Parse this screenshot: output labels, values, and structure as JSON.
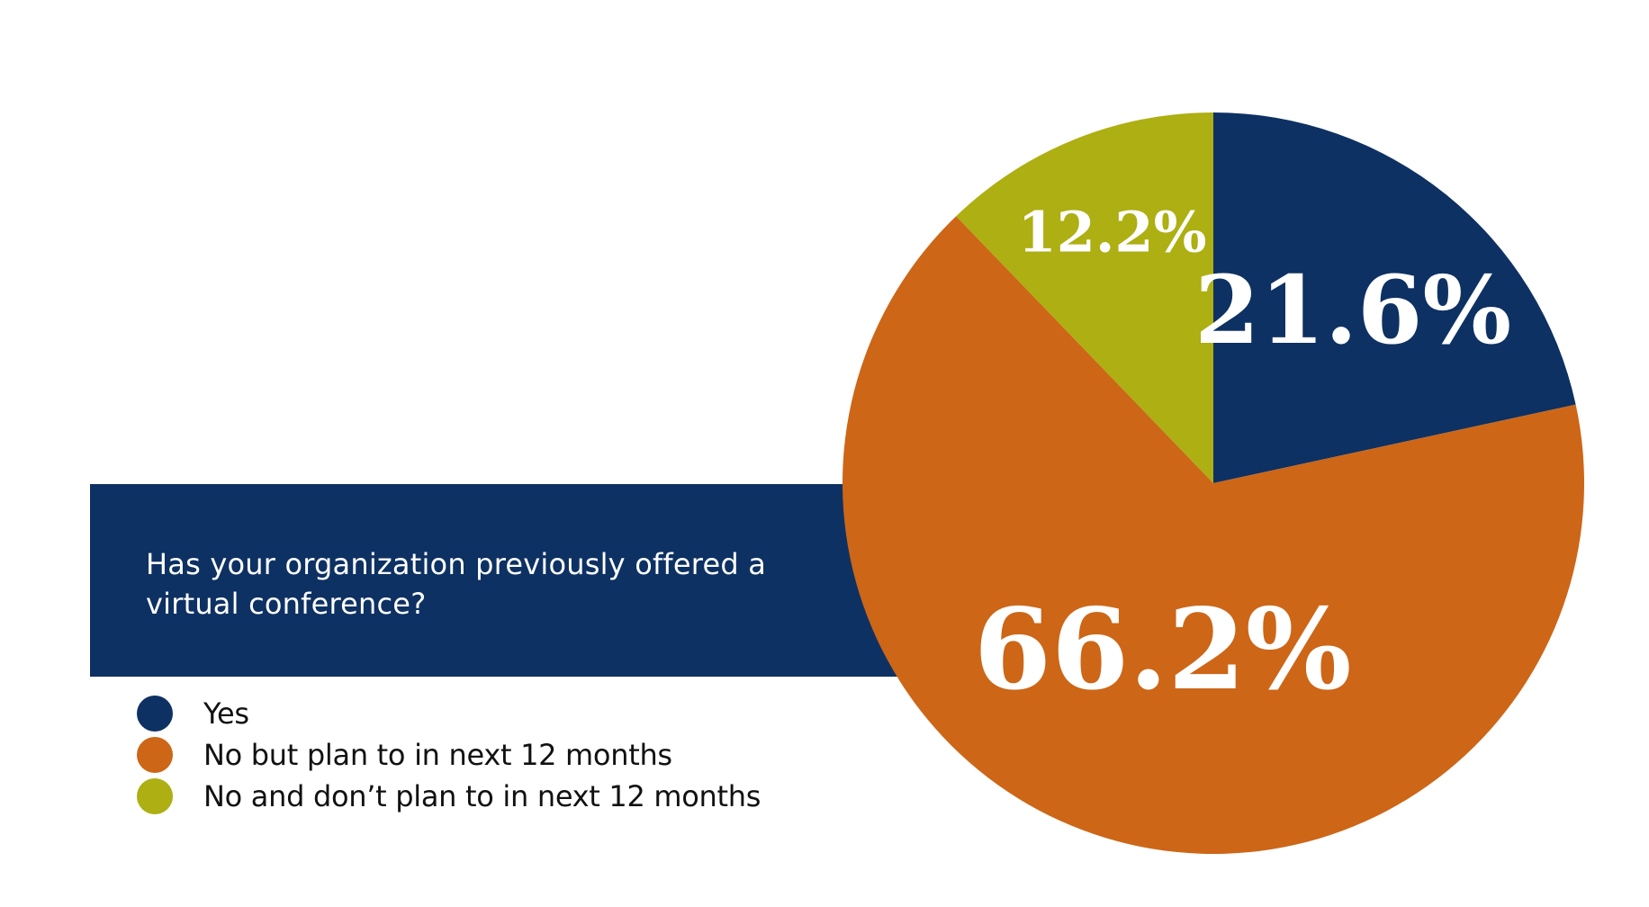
{
  "chart_data": {
    "type": "pie",
    "title": "Has your organization previously offered a virtual conference?",
    "categories": [
      "Yes",
      "No but plan to in next 12 months",
      "No and don’t plan to in next 12 months"
    ],
    "values": [
      21.6,
      66.2,
      12.2
    ],
    "data_labels": [
      "21.6%",
      "66.2%",
      "12.2%"
    ],
    "colors": [
      "#0e3163",
      "#cd6617",
      "#adaf12"
    ],
    "start_angle_deg": 0,
    "direction": "clockwise",
    "legend_placement": "bottom-left"
  }
}
